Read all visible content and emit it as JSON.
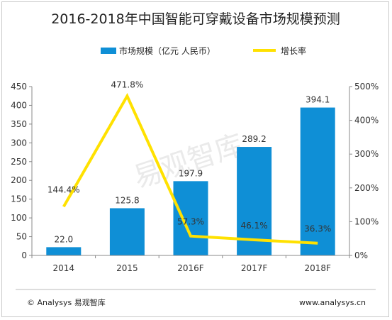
{
  "chart_data": {
    "type": "bar",
    "title": "2016-2018年中国智能可穿戴设备市场规模预测",
    "categories": [
      "2014",
      "2015",
      "2016F",
      "2017F",
      "2018F"
    ],
    "series": [
      {
        "name": "市场规模（亿元 人民币）",
        "type": "bar",
        "axis": "left",
        "color": "#0f8fd6",
        "values": [
          22.0,
          125.8,
          197.9,
          289.2,
          394.1
        ],
        "labels": [
          "22.0",
          "125.8",
          "197.9",
          "289.2",
          "394.1"
        ]
      },
      {
        "name": "增长率",
        "type": "line",
        "axis": "right",
        "color": "#ffe100",
        "values": [
          144.4,
          471.8,
          57.3,
          46.1,
          36.3
        ],
        "labels": [
          "144.4%",
          "471.8%",
          "57.3%",
          "46.1%",
          "36.3%"
        ]
      }
    ],
    "y_left": {
      "min": 0,
      "max": 450,
      "step": 50
    },
    "y_right": {
      "min": 0,
      "max": 500,
      "step": 100,
      "unit": "%"
    },
    "grid": false,
    "legend": "top"
  },
  "watermark": "易观智库",
  "footer": {
    "left": "© Analysys 易观智库",
    "right": "www.analysys.cn"
  }
}
